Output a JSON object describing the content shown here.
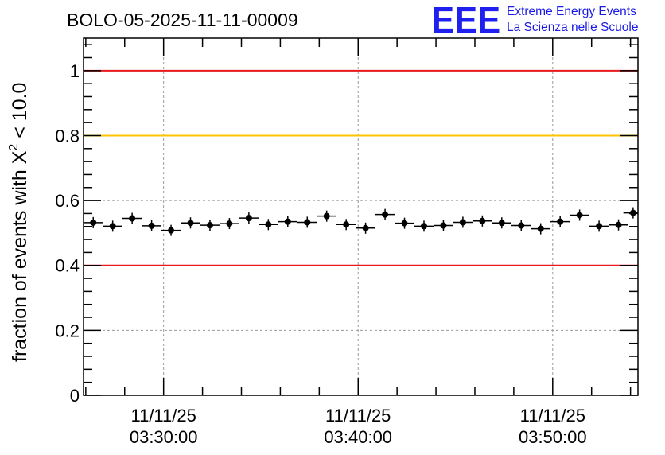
{
  "chart_data": {
    "type": "scatter",
    "title": "BOLO-05-2025-11-11-00009",
    "ylabel": "fraction of events with Χ² < 10.0",
    "ylabel_base": "fraction of events with Χ",
    "ylabel_sup": "2",
    "ylabel_rest": " < 10.0",
    "ylim": [
      0,
      1.1
    ],
    "yticks": [
      0,
      0.2,
      0.4,
      0.6,
      0.8,
      1
    ],
    "ytick_labels": [
      "0",
      "0.2",
      "0.4",
      "0.6",
      "0.8",
      "1"
    ],
    "xlim": [
      "03:25:53",
      "03:54:23"
    ],
    "xticks": [
      {
        "date": "11/11/25",
        "time": "03:30:00"
      },
      {
        "date": "11/11/25",
        "time": "03:40:00"
      },
      {
        "date": "11/11/25",
        "time": "03:50:00"
      }
    ],
    "grid": true,
    "reference_lines": [
      {
        "y": 1.0,
        "color": "#e8191c"
      },
      {
        "y": 0.8,
        "color": "#ffc300"
      },
      {
        "y": 0.4,
        "color": "#e8191c"
      }
    ],
    "bin_width_minutes": 1.0,
    "points": [
      {
        "x": "03:26:23",
        "y": 0.532
      },
      {
        "x": "03:27:23",
        "y": 0.521
      },
      {
        "x": "03:28:23",
        "y": 0.545
      },
      {
        "x": "03:29:23",
        "y": 0.522
      },
      {
        "x": "03:30:23",
        "y": 0.508
      },
      {
        "x": "03:31:23",
        "y": 0.531
      },
      {
        "x": "03:32:23",
        "y": 0.524
      },
      {
        "x": "03:33:23",
        "y": 0.529
      },
      {
        "x": "03:34:23",
        "y": 0.546
      },
      {
        "x": "03:35:23",
        "y": 0.526
      },
      {
        "x": "03:36:23",
        "y": 0.535
      },
      {
        "x": "03:37:23",
        "y": 0.533
      },
      {
        "x": "03:38:23",
        "y": 0.552
      },
      {
        "x": "03:39:23",
        "y": 0.526
      },
      {
        "x": "03:40:23",
        "y": 0.515
      },
      {
        "x": "03:41:23",
        "y": 0.557
      },
      {
        "x": "03:42:23",
        "y": 0.53
      },
      {
        "x": "03:43:23",
        "y": 0.521
      },
      {
        "x": "03:44:23",
        "y": 0.523
      },
      {
        "x": "03:45:23",
        "y": 0.533
      },
      {
        "x": "03:46:23",
        "y": 0.537
      },
      {
        "x": "03:47:23",
        "y": 0.531
      },
      {
        "x": "03:48:23",
        "y": 0.523
      },
      {
        "x": "03:49:23",
        "y": 0.513
      },
      {
        "x": "03:50:23",
        "y": 0.535
      },
      {
        "x": "03:51:23",
        "y": 0.555
      },
      {
        "x": "03:52:23",
        "y": 0.521
      },
      {
        "x": "03:53:23",
        "y": 0.525
      },
      {
        "x": "03:54:08",
        "y": 0.562
      }
    ],
    "point_color": "#000000"
  },
  "logo": {
    "mark": "EEE",
    "line1": "Extreme Energy Events",
    "line2": "La Scienza nelle Scuole",
    "color": "#1f1ff0"
  }
}
